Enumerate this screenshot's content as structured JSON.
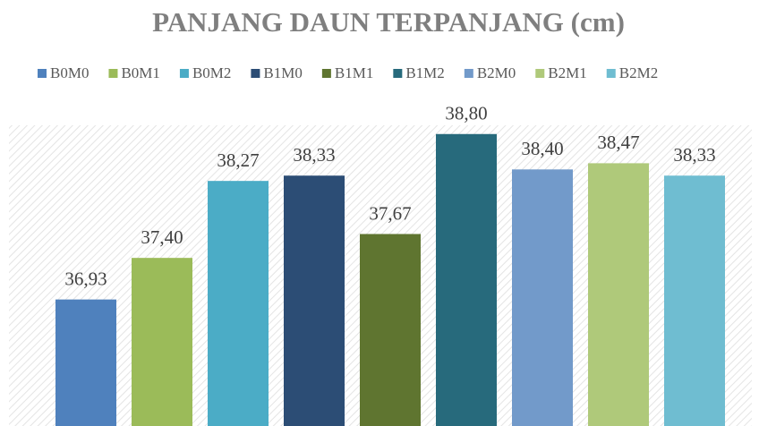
{
  "chart_data": {
    "type": "bar",
    "title": "PANJANG DAUN TERPANJANG (cm)",
    "series": [
      {
        "name": "B0M0",
        "color": "#4f81bd",
        "values": [
          36.93
        ],
        "value_labels": [
          "36,93"
        ]
      },
      {
        "name": "B0M1",
        "color": "#9bbb59",
        "values": [
          37.4
        ],
        "value_labels": [
          "37,40"
        ]
      },
      {
        "name": "B0M2",
        "color": "#4bacc6",
        "values": [
          38.27
        ],
        "value_labels": [
          "38,27"
        ]
      },
      {
        "name": "B1M0",
        "color": "#2c4d75",
        "values": [
          38.33
        ],
        "value_labels": [
          "38,33"
        ]
      },
      {
        "name": "B1M1",
        "color": "#5f7530",
        "values": [
          37.67
        ],
        "value_labels": [
          "37,67"
        ]
      },
      {
        "name": "B1M2",
        "color": "#276a7c",
        "values": [
          38.8
        ],
        "value_labels": [
          "38,80"
        ]
      },
      {
        "name": "B2M0",
        "color": "#729aca",
        "values": [
          38.4
        ],
        "value_labels": [
          "38,40"
        ]
      },
      {
        "name": "B2M1",
        "color": "#afc97a",
        "values": [
          38.47
        ],
        "value_labels": [
          "38,47"
        ]
      },
      {
        "name": "B2M2",
        "color": "#6fbdd1",
        "values": [
          38.33
        ],
        "value_labels": [
          "38,33"
        ]
      }
    ],
    "ylim": [
      35.5,
      39
    ],
    "legend": "top"
  }
}
